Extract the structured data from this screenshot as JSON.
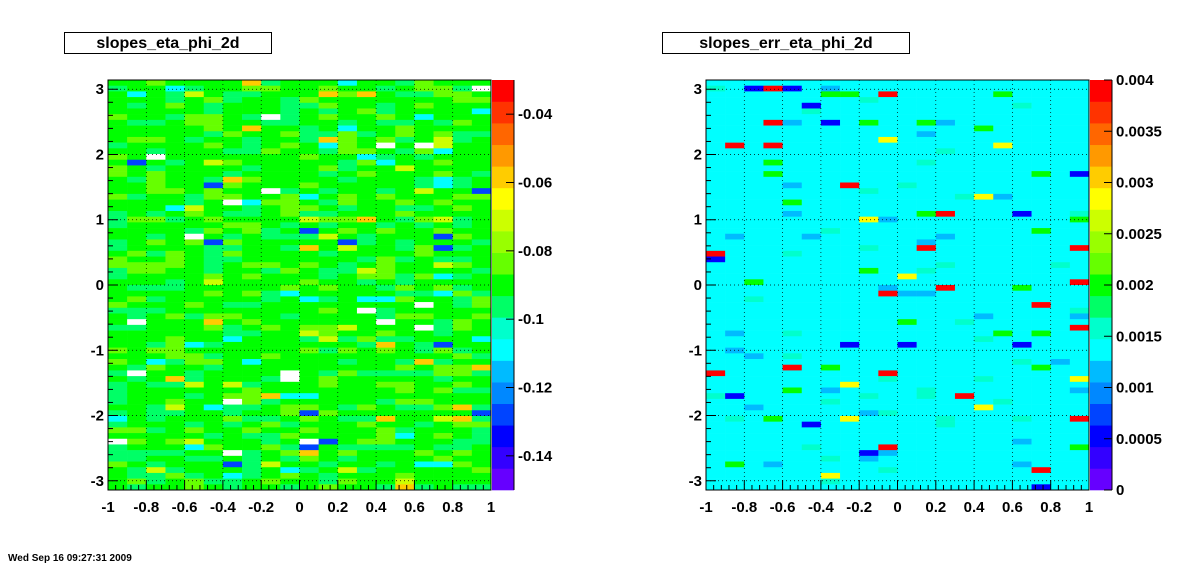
{
  "timestamp": "Wed Sep 16 09:27:31 2009",
  "chart_data": [
    {
      "type": "heatmap",
      "title": "slopes_eta_phi_2d",
      "xlabel": "",
      "ylabel": "",
      "xlim": [
        -1,
        1
      ],
      "ylim": [
        -3.14159,
        3.14159
      ],
      "x_ticks": [
        "-1",
        "-0.8",
        "-0.6",
        "-0.4",
        "-0.2",
        "0",
        "0.2",
        "0.4",
        "0.6",
        "0.8",
        "1"
      ],
      "y_ticks": [
        "-3",
        "-2",
        "-1",
        "0",
        "1",
        "2",
        "3"
      ],
      "zlim": [
        -0.15,
        -0.03
      ],
      "z_ticks": [
        "-0.14",
        "-0.12",
        "-0.1",
        "-0.08",
        "-0.06",
        "-0.04"
      ],
      "grid": true,
      "palette": "rainbow",
      "typical_value": -0.085,
      "bins": "approx 20 (x) by 72 (y); predominantly green (about -0.08 to -0.09), scattered light-green, yellow, cyan, blue and a few white (empty) cells"
    },
    {
      "type": "heatmap",
      "title": "slopes_err_eta_phi_2d",
      "xlabel": "",
      "ylabel": "",
      "xlim": [
        -1,
        1
      ],
      "ylim": [
        -3.14159,
        3.14159
      ],
      "x_ticks": [
        "-1",
        "-0.8",
        "-0.6",
        "-0.4",
        "-0.2",
        "0",
        "0.2",
        "0.4",
        "0.6",
        "0.8",
        "1"
      ],
      "y_ticks": [
        "-3",
        "-2",
        "-1",
        "0",
        "1",
        "2",
        "3"
      ],
      "zlim": [
        0,
        0.004
      ],
      "z_ticks": [
        "0",
        "0.0005",
        "0.001",
        "0.0015",
        "0.002",
        "0.0025",
        "0.003",
        "0.0035",
        "0.004"
      ],
      "grid": true,
      "palette": "rainbow",
      "typical_value": 0.0014,
      "bins": "approx 20 (x) by 72 (y); predominantly cyan (about 0.0012 to 0.0015), scattered green, light-blue and a few red (about 0.0035 to 0.004) cells"
    }
  ],
  "palette_colors": [
    "#6600ff",
    "#3300ff",
    "#0000ff",
    "#0044ff",
    "#0088ff",
    "#00bbff",
    "#00ffff",
    "#00ffcc",
    "#00ff66",
    "#00ff00",
    "#66ff00",
    "#99ff00",
    "#ccff00",
    "#ffff00",
    "#ffcc00",
    "#ff9900",
    "#ff6600",
    "#ff3300",
    "#ff0000"
  ]
}
